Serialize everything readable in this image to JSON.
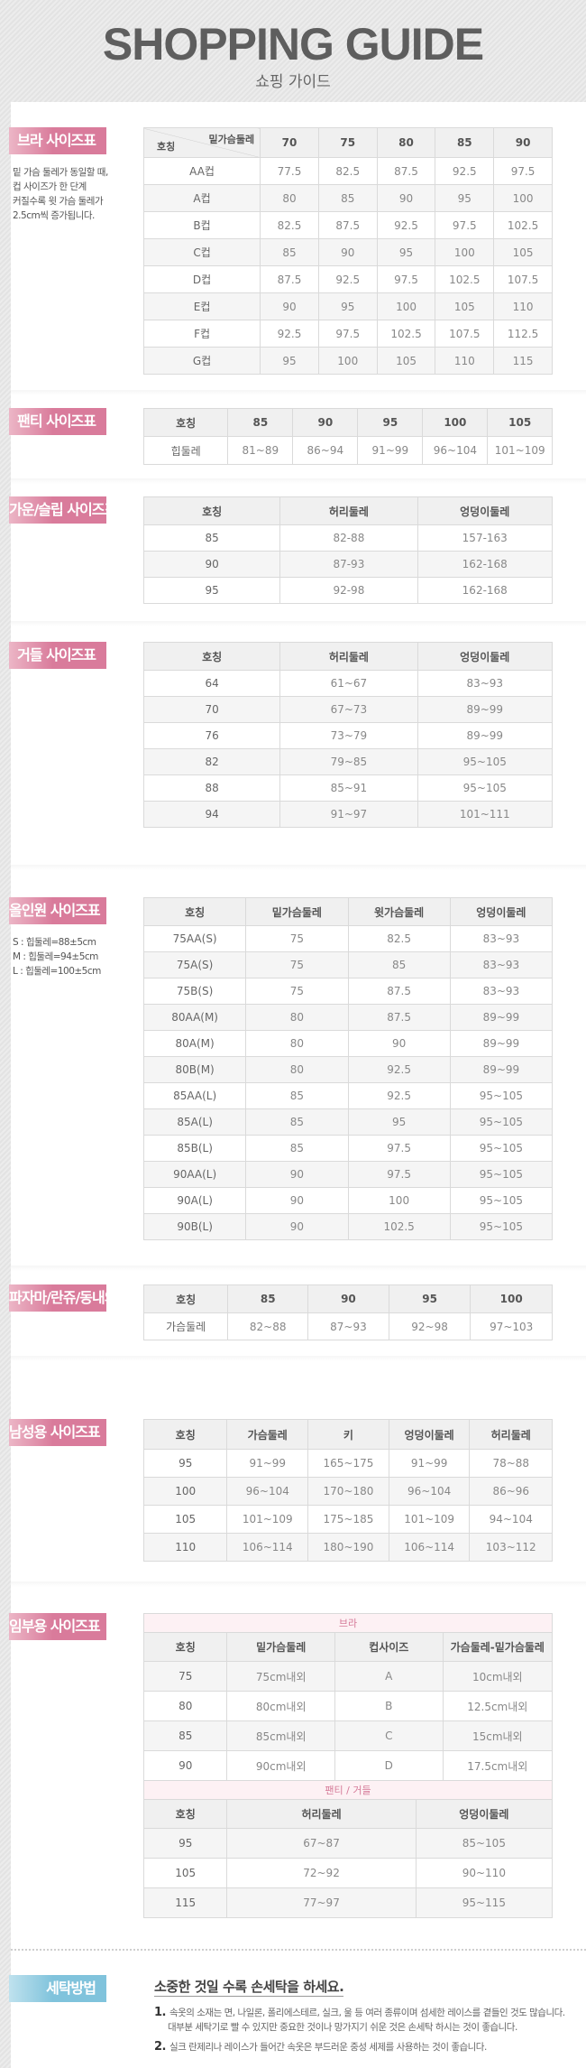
{
  "header": {
    "title": "SHOPPING GUIDE",
    "subtitle": "쇼핑 가이드"
  },
  "colors": {
    "label_pink": "#d97b9b",
    "label_blue": "#80c3dc",
    "subheader_pink": "#d57a98"
  },
  "sections": [
    {
      "id": "bra",
      "label": "브라 사이즈표",
      "notes": [
        "밑 가슴 둘레가 동일할 때,",
        "컵 사이즈가 한 단계",
        "커질수록 윗 가슴 둘레가",
        "2.5cm씩 증가됩니다."
      ],
      "diag": {
        "top": "밑가슴둘레",
        "bottom": "호칭"
      },
      "headers": [
        "",
        "70",
        "75",
        "80",
        "85",
        "90"
      ],
      "rows": [
        [
          "AA컵",
          "77.5",
          "82.5",
          "87.5",
          "92.5",
          "97.5"
        ],
        [
          "A컵",
          "80",
          "85",
          "90",
          "95",
          "100"
        ],
        [
          "B컵",
          "82.5",
          "87.5",
          "92.5",
          "97.5",
          "102.5"
        ],
        [
          "C컵",
          "85",
          "90",
          "95",
          "100",
          "105"
        ],
        [
          "D컵",
          "87.5",
          "92.5",
          "97.5",
          "102.5",
          "107.5"
        ],
        [
          "E컵",
          "90",
          "95",
          "100",
          "105",
          "110"
        ],
        [
          "F컵",
          "92.5",
          "97.5",
          "102.5",
          "107.5",
          "112.5"
        ],
        [
          "G컵",
          "95",
          "100",
          "105",
          "110",
          "115"
        ]
      ]
    },
    {
      "id": "panty",
      "label": "팬티 사이즈표",
      "headers": [
        "호칭",
        "85",
        "90",
        "95",
        "100",
        "105"
      ],
      "rows": [
        [
          "힙둘레",
          "81~89",
          "86~94",
          "91~99",
          "96~104",
          "101~109"
        ]
      ]
    },
    {
      "id": "gown",
      "label": "가운/슬립 사이즈표",
      "headers": [
        "호칭",
        "허리둘레",
        "엉덩이둘레"
      ],
      "rows": [
        [
          "85",
          "82-88",
          "157-163"
        ],
        [
          "90",
          "87-93",
          "162-168"
        ],
        [
          "95",
          "92-98",
          "162-168"
        ]
      ]
    },
    {
      "id": "girdle",
      "label": "거들 사이즈표",
      "headers": [
        "호칭",
        "허리둘레",
        "엉덩이둘레"
      ],
      "rows": [
        [
          "64",
          "61~67",
          "83~93"
        ],
        [
          "70",
          "67~73",
          "89~99"
        ],
        [
          "76",
          "73~79",
          "89~99"
        ],
        [
          "82",
          "79~85",
          "95~105"
        ],
        [
          "88",
          "85~91",
          "95~105"
        ],
        [
          "94",
          "91~97",
          "101~111"
        ]
      ]
    },
    {
      "id": "allinone",
      "label": "올인원 사이즈표",
      "notes": [
        "S : 힙둘레=88±5cm",
        "M : 힙둘레=94±5cm",
        "L : 힙둘레=100±5cm"
      ],
      "headers": [
        "호칭",
        "밑가슴둘레",
        "윗가슴둘레",
        "엉덩이둘레"
      ],
      "rows": [
        [
          "75AA(S)",
          "75",
          "82.5",
          "83~93"
        ],
        [
          "75A(S)",
          "75",
          "85",
          "83~93"
        ],
        [
          "75B(S)",
          "75",
          "87.5",
          "83~93"
        ],
        [
          "80AA(M)",
          "80",
          "87.5",
          "89~99"
        ],
        [
          "80A(M)",
          "80",
          "90",
          "89~99"
        ],
        [
          "80B(M)",
          "80",
          "92.5",
          "89~99"
        ],
        [
          "85AA(L)",
          "85",
          "92.5",
          "95~105"
        ],
        [
          "85A(L)",
          "85",
          "95",
          "95~105"
        ],
        [
          "85B(L)",
          "85",
          "97.5",
          "95~105"
        ],
        [
          "90AA(L)",
          "90",
          "97.5",
          "95~105"
        ],
        [
          "90A(L)",
          "90",
          "100",
          "95~105"
        ],
        [
          "90B(L)",
          "90",
          "102.5",
          "95~105"
        ]
      ]
    },
    {
      "id": "pajama",
      "label": "파자마/란쥬/동내의",
      "headers": [
        "호칭",
        "85",
        "90",
        "95",
        "100"
      ],
      "rows": [
        [
          "가슴둘레",
          "82~88",
          "87~93",
          "92~98",
          "97~103"
        ]
      ]
    },
    {
      "id": "men",
      "label": "남성용 사이즈표",
      "headers": [
        "호칭",
        "가슴둘레",
        "키",
        "엉덩이둘레",
        "허리둘레"
      ],
      "rows": [
        [
          "95",
          "91~99",
          "165~175",
          "91~99",
          "78~88"
        ],
        [
          "100",
          "96~104",
          "170~180",
          "96~104",
          "86~96"
        ],
        [
          "105",
          "101~109",
          "175~185",
          "101~109",
          "94~104"
        ],
        [
          "110",
          "106~114",
          "180~190",
          "106~114",
          "103~112"
        ]
      ]
    },
    {
      "id": "maternity",
      "label": "임부용 사이즈표",
      "groups": [
        {
          "title": "브라",
          "headers": [
            "호칭",
            "밑가슴둘레",
            "컵사이즈",
            "가슴둘레-밑가슴둘레"
          ],
          "rows": [
            [
              "75",
              "75cm내외",
              "A",
              "10cm내외"
            ],
            [
              "80",
              "80cm내외",
              "B",
              "12.5cm내외"
            ],
            [
              "85",
              "85cm내외",
              "C",
              "15cm내외"
            ],
            [
              "90",
              "90cm내외",
              "D",
              "17.5cm내외"
            ]
          ]
        },
        {
          "title": "팬티 / 거들",
          "headers": [
            "호칭",
            "허리둘레",
            "엉덩이둘레"
          ],
          "rows": [
            [
              "95",
              "67~87",
              "85~105"
            ],
            [
              "105",
              "72~92",
              "90~110"
            ],
            [
              "115",
              "77~97",
              "95~115"
            ]
          ]
        }
      ]
    }
  ],
  "washing": {
    "label": "세탁방법",
    "headline": "소중한 것일 수록 손세탁을 하세요.",
    "items": [
      {
        "num": "1.",
        "lines": [
          "속옷의 소재는 면, 나일론, 폴리에스테르, 실크, 울 등 여러 종류이며 섬세한 레이스를 곁들인 것도 많습니다.",
          "대부분 세탁기로 빨 수 있지만 중요한 것이나 망가지기 쉬운 것은 손세탁 하시는 것이 좋습니다."
        ]
      },
      {
        "num": "2.",
        "lines": [
          "실크 란제리나 레이스가 들어간 속옷은 부드러운 중성 세제를 사용하는 것이 좋습니다."
        ]
      }
    ]
  }
}
